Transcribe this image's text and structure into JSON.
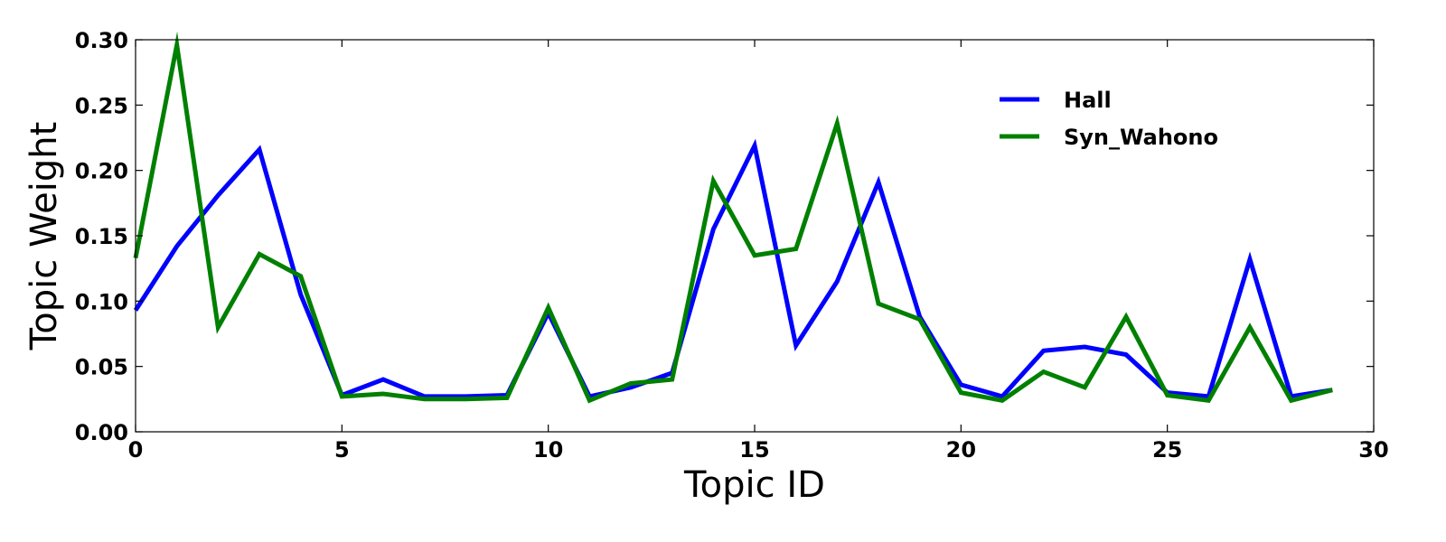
{
  "chart_data": {
    "type": "line",
    "xlabel": "Topic ID",
    "ylabel": "Topic Weight",
    "xlim": [
      0,
      30
    ],
    "ylim": [
      0,
      0.3
    ],
    "xticks": [
      "0",
      "5",
      "10",
      "15",
      "20",
      "25",
      "30"
    ],
    "yticks": [
      "0.00",
      "0.05",
      "0.10",
      "0.15",
      "0.20",
      "0.25",
      "0.30"
    ],
    "grid": false,
    "legend_position": "top-right",
    "x": [
      0,
      1,
      2,
      3,
      4,
      5,
      6,
      7,
      8,
      9,
      10,
      11,
      12,
      13,
      14,
      15,
      16,
      17,
      18,
      19,
      20,
      21,
      22,
      23,
      24,
      25,
      26,
      27,
      28,
      29
    ],
    "series": [
      {
        "name": "Hall",
        "color": "#0000ff",
        "values": [
          0.093,
          0.142,
          0.181,
          0.216,
          0.105,
          0.028,
          0.04,
          0.027,
          0.027,
          0.028,
          0.091,
          0.027,
          0.034,
          0.045,
          0.155,
          0.219,
          0.066,
          0.115,
          0.191,
          0.088,
          0.036,
          0.027,
          0.062,
          0.065,
          0.059,
          0.03,
          0.027,
          0.132,
          0.027,
          0.032
        ]
      },
      {
        "name": "Syn_Wahono",
        "color": "#008000",
        "values": [
          0.133,
          0.296,
          0.08,
          0.136,
          0.119,
          0.027,
          0.029,
          0.025,
          0.025,
          0.026,
          0.095,
          0.024,
          0.037,
          0.04,
          0.192,
          0.135,
          0.14,
          0.236,
          0.098,
          0.086,
          0.03,
          0.024,
          0.046,
          0.034,
          0.088,
          0.028,
          0.024,
          0.08,
          0.024,
          0.032
        ]
      }
    ]
  }
}
